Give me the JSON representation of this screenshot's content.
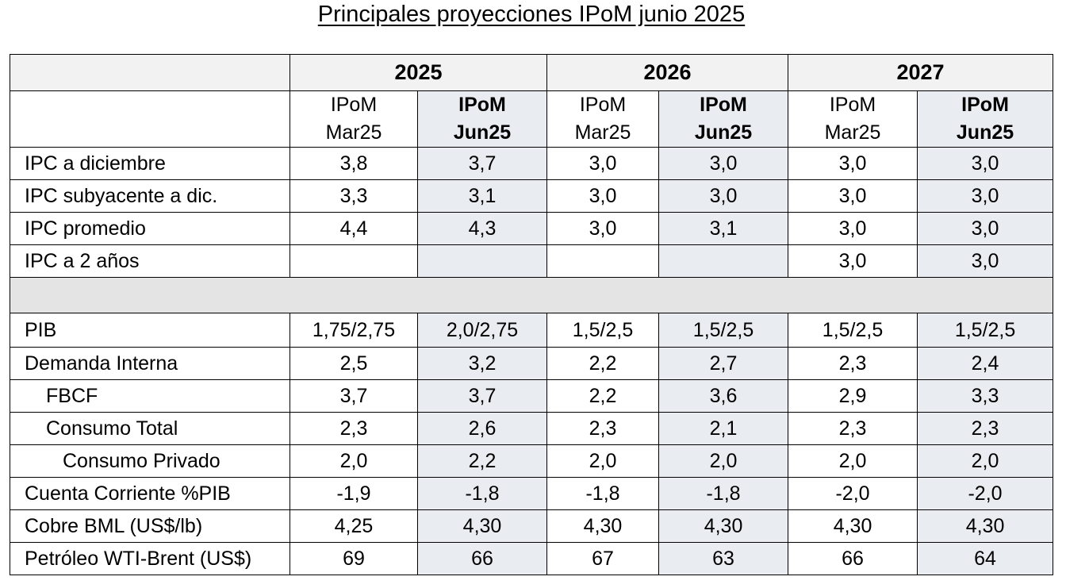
{
  "title": "Principales proyecciones IPoM junio 2025",
  "years": [
    "2025",
    "2026",
    "2027"
  ],
  "subheaders": [
    {
      "line1": "IPoM",
      "line2": "Mar25"
    },
    {
      "line1": "IPoM",
      "line2": "Jun25"
    },
    {
      "line1": "IPoM",
      "line2": "Mar25"
    },
    {
      "line1": "IPoM",
      "line2": "Jun25"
    },
    {
      "line1": "IPoM",
      "line2": "Mar25"
    },
    {
      "line1": "IPoM",
      "line2": "Jun25"
    }
  ],
  "inflation_rows": [
    {
      "label": "IPC a diciembre",
      "values": [
        "3,8",
        "3,7",
        "3,0",
        "3,0",
        "3,0",
        "3,0"
      ]
    },
    {
      "label": "IPC subyacente a dic.",
      "values": [
        "3,3",
        "3,1",
        "3,0",
        "3,0",
        "3,0",
        "3,0"
      ]
    },
    {
      "label": "IPC promedio",
      "values": [
        "4,4",
        "4,3",
        "3,0",
        "3,1",
        "3,0",
        "3,0"
      ]
    },
    {
      "label": "IPC a 2 años",
      "values": [
        "",
        "",
        "",
        "",
        "3,0",
        "3,0"
      ]
    }
  ],
  "activity_rows": [
    {
      "label": "PIB",
      "values": [
        "1,75/2,75",
        "2,0/2,75",
        "1,5/2,5",
        "1,5/2,5",
        "1,5/2,5",
        "1,5/2,5"
      ]
    },
    {
      "label": "Demanda Interna",
      "values": [
        "2,5",
        "3,2",
        "2,2",
        "2,7",
        "2,3",
        "2,4"
      ]
    },
    {
      "label": "FBCF",
      "values": [
        "3,7",
        "3,7",
        "2,2",
        "3,6",
        "2,9",
        "3,3"
      ]
    },
    {
      "label": "Consumo Total",
      "values": [
        "2,3",
        "2,6",
        "2,3",
        "2,1",
        "2,3",
        "2,3"
      ]
    },
    {
      "label": "Consumo Privado",
      "values": [
        "2,0",
        "2,2",
        "2,0",
        "2,0",
        "2,0",
        "2,0"
      ]
    },
    {
      "label": "Cuenta Corriente %PIB",
      "values": [
        "-1,9",
        "-1,8",
        "-1,8",
        "-1,8",
        "-2,0",
        "-2,0"
      ]
    },
    {
      "label": "Cobre BML (US$/lb)",
      "values": [
        "4,25",
        "4,30",
        "4,30",
        "4,30",
        "4,30",
        "4,30"
      ]
    },
    {
      "label": "Petróleo WTI-Brent (US$)",
      "values": [
        "69",
        "66",
        "67",
        "63",
        "66",
        "64"
      ]
    }
  ]
}
